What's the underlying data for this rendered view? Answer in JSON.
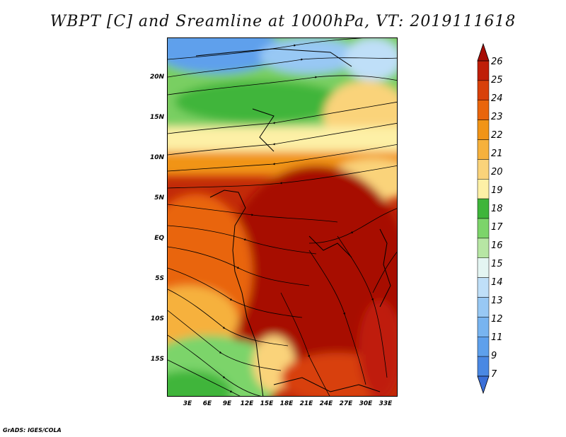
{
  "title": "WBPT [C] and Sreamline at 1000hPa, VT: 2019111618",
  "credit": "GrADS: IGES/COLA",
  "map": {
    "lat_labels": [
      "20N",
      "15N",
      "10N",
      "5N",
      "EQ",
      "5S",
      "10S",
      "15S"
    ],
    "lon_labels": [
      "3E",
      "6E",
      "9E",
      "12E",
      "15E",
      "18E",
      "21E",
      "24E",
      "27E",
      "30E",
      "33E"
    ]
  },
  "colorbar": {
    "labels": [
      "7",
      "9",
      "11",
      "12",
      "13",
      "14",
      "15",
      "16",
      "17",
      "18",
      "19",
      "20",
      "21",
      "22",
      "23",
      "24",
      "25",
      "26"
    ],
    "colors": [
      "#3a6fd8",
      "#4a88e3",
      "#5ea0ec",
      "#78b4f0",
      "#98c8f4",
      "#bfdff8",
      "#e4f5f2",
      "#b7e6a4",
      "#7cd46a",
      "#3fb53a",
      "#fdf0a6",
      "#fad37a",
      "#f6b13c",
      "#f19417",
      "#e9650c",
      "#d8400a",
      "#bf1e08",
      "#a70d05"
    ]
  }
}
